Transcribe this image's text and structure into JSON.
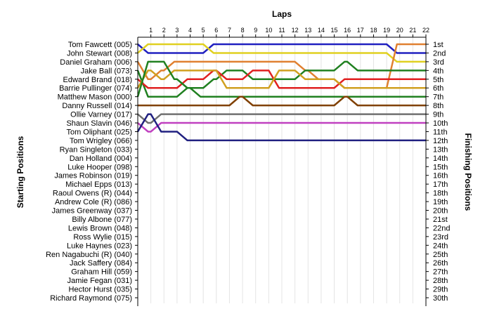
{
  "chart_data": {
    "type": "line",
    "title": "",
    "top_label": "Laps",
    "left_label": "Starting Positions",
    "right_label": "Finishing Positions",
    "laps": [
      1,
      2,
      3,
      4,
      5,
      6,
      7,
      8,
      9,
      10,
      11,
      12,
      13,
      14,
      15,
      16,
      17,
      18,
      19,
      20,
      21,
      22
    ],
    "drivers": [
      "Tom Fawcett (005)",
      "John Stewart (008)",
      "Daniel Graham (006)",
      "Jake Ball (073)",
      "Edward Brand (018)",
      "Barrie Pullinger (074)",
      "Matthew Mason (000)",
      "Danny Russell (014)",
      "Ollie Varney (017)",
      "Shaun Slavin (046)",
      "Tom Oliphant (025)",
      "Tom Wrigley (066)",
      "Ryan Singleton (033)",
      "Dan Holland (004)",
      "Luke Hooper (098)",
      "James Robinson (019)",
      "Michael Epps (013)",
      "Raoul Owens  (R) (044)",
      "Andrew Cole  (R) (086)",
      "James Greenway (037)",
      "Billy Albone (077)",
      "Lewis Brown (048)",
      "Ross Wylie (015)",
      "Luke Haynes (023)",
      "Ren Nagabuchi  (R) (040)",
      "Jack Saffery (084)",
      "Graham Hill (059)",
      "Jamie Fegan (031)",
      "Hector Hurst (035)",
      "Richard Raymond (075)"
    ],
    "finishing_labels": [
      "1st",
      "2nd",
      "3rd",
      "4th",
      "5th",
      "6th",
      "7th",
      "8th",
      "9th",
      "10th",
      "11th",
      "12th",
      "13th",
      "14th",
      "15th",
      "16th",
      "17th",
      "18th",
      "19th",
      "20th",
      "21st",
      "22nd",
      "23rd",
      "24th",
      "25th",
      "26th",
      "27th",
      "28th",
      "29th",
      "30th"
    ],
    "series": [
      {
        "start": 1,
        "color": "#2020c0",
        "positions": [
          2,
          2,
          2,
          2,
          2,
          1,
          1,
          1,
          1,
          1,
          1,
          1,
          1,
          1,
          1,
          1,
          1,
          1,
          1,
          2,
          2,
          2
        ]
      },
      {
        "start": 2,
        "color": "#e0d020",
        "positions": [
          1,
          1,
          1,
          1,
          1,
          2,
          2,
          2,
          2,
          2,
          2,
          2,
          2,
          2,
          2,
          2,
          2,
          2,
          2,
          3,
          3,
          3
        ]
      },
      {
        "start": 3,
        "color": "#e08030",
        "positions": [
          5,
          4,
          3,
          3,
          3,
          3,
          3,
          3,
          3,
          3,
          3,
          3,
          4,
          5,
          5,
          6,
          6,
          6,
          6,
          1,
          1,
          1
        ]
      },
      {
        "start": 4,
        "color": "#208020",
        "positions": [
          7,
          7,
          7,
          6,
          6,
          5,
          4,
          4,
          5,
          5,
          5,
          5,
          4,
          4,
          4,
          3,
          4,
          4,
          4,
          4,
          4,
          4
        ]
      },
      {
        "start": 5,
        "color": "#e02020",
        "positions": [
          6,
          6,
          6,
          5,
          5,
          4,
          5,
          5,
          4,
          4,
          6,
          6,
          6,
          6,
          6,
          5,
          5,
          5,
          5,
          5,
          5,
          5
        ]
      },
      {
        "start": 6,
        "color": "#d0a020",
        "positions": [
          4,
          5,
          4,
          4,
          4,
          4,
          6,
          6,
          6,
          6,
          4,
          4,
          5,
          5,
          5,
          6,
          6,
          6,
          6,
          6,
          6,
          6
        ]
      },
      {
        "start": 7,
        "color": "#208020",
        "positions": [
          3,
          3,
          5,
          6,
          7,
          7,
          7,
          7,
          7,
          7,
          7,
          7,
          7,
          7,
          7,
          7,
          7,
          7,
          7,
          7,
          7,
          7
        ]
      },
      {
        "start": 8,
        "color": "#804000",
        "positions": [
          8,
          8,
          8,
          8,
          8,
          8,
          8,
          7,
          8,
          8,
          8,
          8,
          8,
          8,
          8,
          7,
          8,
          8,
          8,
          8,
          8,
          8
        ]
      },
      {
        "start": 9,
        "color": "#707070",
        "positions": [
          10,
          9,
          9,
          9,
          9,
          9,
          9,
          9,
          9,
          9,
          9,
          9,
          9,
          9,
          9,
          9,
          9,
          9,
          9,
          9,
          9,
          9
        ]
      },
      {
        "start": 10,
        "color": "#c040c0",
        "positions": [
          11,
          10,
          10,
          10,
          10,
          10,
          10,
          10,
          10,
          10,
          10,
          10,
          10,
          10,
          10,
          10,
          10,
          10,
          10,
          10,
          10,
          10
        ]
      },
      {
        "start": 11,
        "color": "#202080",
        "positions": [
          9,
          11,
          11,
          12,
          12,
          12,
          12,
          12,
          12,
          12,
          12,
          12,
          12,
          12,
          12,
          12,
          12,
          12,
          12,
          12,
          12,
          12
        ]
      }
    ]
  }
}
